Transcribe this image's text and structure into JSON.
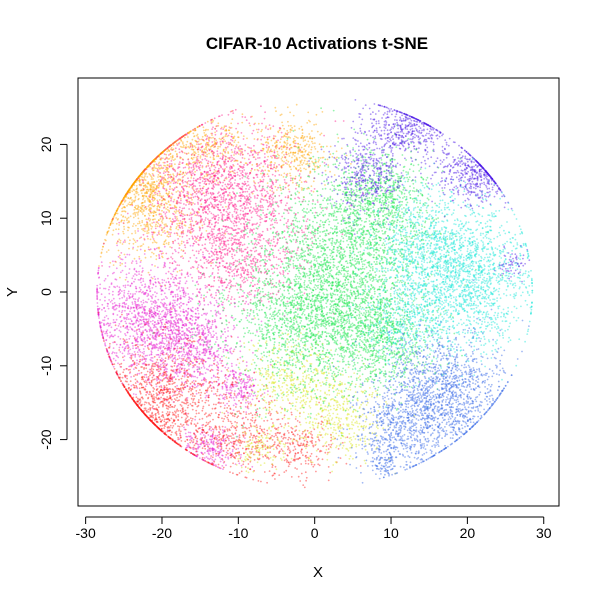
{
  "chart_data": {
    "type": "scatter",
    "title": "CIFAR-10 Activations t-SNE",
    "xlabel": "X",
    "ylabel": "Y",
    "xlim": [
      -31,
      32
    ],
    "ylim": [
      -29,
      29
    ],
    "xticks": [
      -30,
      -20,
      -10,
      0,
      10,
      20,
      30
    ],
    "yticks": [
      -20,
      -10,
      0,
      10,
      20
    ],
    "grid": false,
    "legend": "none",
    "marker": "small translucent dots",
    "clusters": [
      {
        "color": "#FFA500",
        "center": [
          -22,
          14
        ],
        "spread": [
          3.5,
          4.5
        ],
        "points": 1300
      },
      {
        "color": "#FFA500",
        "center": [
          -14,
          20
        ],
        "spread": [
          3.0,
          2.0
        ],
        "points": 300
      },
      {
        "color": "#FFA500",
        "center": [
          -3,
          19
        ],
        "spread": [
          2.5,
          2.5
        ],
        "points": 400
      },
      {
        "color": "#FF1A8C",
        "center": [
          -12,
          13
        ],
        "spread": [
          5.0,
          5.0
        ],
        "points": 1800
      },
      {
        "color": "#FF1A8C",
        "center": [
          -10,
          4
        ],
        "spread": [
          4.0,
          3.0
        ],
        "points": 500
      },
      {
        "color": "#E61ED0",
        "center": [
          -21,
          -4
        ],
        "spread": [
          4.5,
          4.0
        ],
        "points": 1500
      },
      {
        "color": "#E61ED0",
        "center": [
          -16,
          -8
        ],
        "spread": [
          3.0,
          3.0
        ],
        "points": 500
      },
      {
        "color": "#E61ED0",
        "center": [
          -10,
          -13
        ],
        "spread": [
          1.5,
          1.5
        ],
        "points": 200
      },
      {
        "color": "#E61ED0",
        "center": [
          -14,
          -21
        ],
        "spread": [
          2.0,
          1.5
        ],
        "points": 250
      },
      {
        "color": "#FF1A1A",
        "center": [
          -20,
          -15
        ],
        "spread": [
          4.0,
          4.0
        ],
        "points": 1200
      },
      {
        "color": "#FF1A1A",
        "center": [
          -10,
          -19
        ],
        "spread": [
          3.0,
          3.0
        ],
        "points": 400
      },
      {
        "color": "#FF1A1A",
        "center": [
          -2,
          -21
        ],
        "spread": [
          2.5,
          2.0
        ],
        "points": 250
      },
      {
        "color": "#D9E61A",
        "center": [
          -3,
          -12
        ],
        "spread": [
          3.0,
          3.0
        ],
        "points": 400
      },
      {
        "color": "#D9E61A",
        "center": [
          3,
          -17
        ],
        "spread": [
          3.0,
          3.0
        ],
        "points": 400
      },
      {
        "color": "#D9E61A",
        "center": [
          -7,
          -21
        ],
        "spread": [
          1.5,
          1.5
        ],
        "points": 120
      },
      {
        "color": "#1AE64D",
        "center": [
          1,
          -3
        ],
        "spread": [
          6.0,
          5.0
        ],
        "points": 2500
      },
      {
        "color": "#1AE64D",
        "center": [
          5,
          8
        ],
        "spread": [
          5.0,
          5.0
        ],
        "points": 1500
      },
      {
        "color": "#1AE64D",
        "center": [
          9,
          14
        ],
        "spread": [
          3.0,
          3.0
        ],
        "points": 400
      },
      {
        "color": "#1AE64D",
        "center": [
          9,
          -7
        ],
        "spread": [
          3.0,
          3.0
        ],
        "points": 500
      },
      {
        "color": "#1AE6D9",
        "center": [
          20,
          2
        ],
        "spread": [
          4.0,
          5.0
        ],
        "points": 1600
      },
      {
        "color": "#1AE6D9",
        "center": [
          14,
          6
        ],
        "spread": [
          3.0,
          4.0
        ],
        "points": 600
      },
      {
        "color": "#1AE6D9",
        "center": [
          12,
          -4
        ],
        "spread": [
          3.0,
          3.0
        ],
        "points": 400
      },
      {
        "color": "#3366E6",
        "center": [
          17,
          -14
        ],
        "spread": [
          4.0,
          4.0
        ],
        "points": 1400
      },
      {
        "color": "#3366E6",
        "center": [
          11,
          -19
        ],
        "spread": [
          3.0,
          3.0
        ],
        "points": 500
      },
      {
        "color": "#3366E6",
        "center": [
          9,
          -23
        ],
        "spread": [
          1.0,
          1.0
        ],
        "points": 80
      },
      {
        "color": "#4D1AE6",
        "center": [
          12,
          22
        ],
        "spread": [
          3.0,
          2.0
        ],
        "points": 500
      },
      {
        "color": "#4D1AE6",
        "center": [
          21,
          16
        ],
        "spread": [
          2.5,
          2.0
        ],
        "points": 500
      },
      {
        "color": "#4D1AE6",
        "center": [
          7,
          16
        ],
        "spread": [
          2.5,
          2.5
        ],
        "points": 400
      },
      {
        "color": "#4D1AE6",
        "center": [
          26,
          4
        ],
        "spread": [
          1.0,
          1.0
        ],
        "points": 60
      }
    ]
  }
}
